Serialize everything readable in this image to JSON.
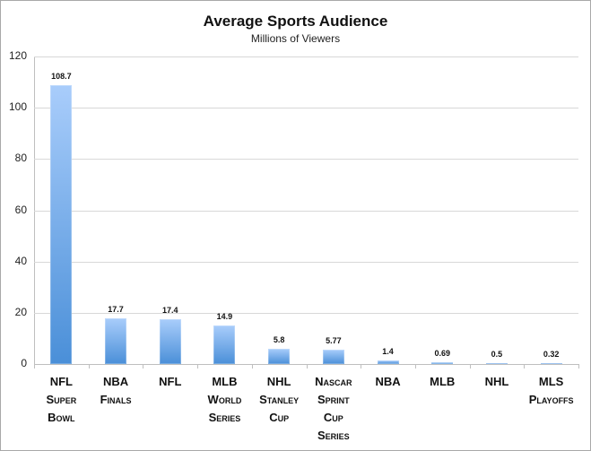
{
  "chart_data": {
    "type": "bar",
    "title": "Average Sports Audience",
    "subtitle": "Millions of Viewers",
    "xlabel": "",
    "ylabel": "",
    "ylim": [
      0,
      120
    ],
    "yticks": [
      "0",
      "20",
      "40",
      "60",
      "80",
      "100",
      "120"
    ],
    "grid": true,
    "legend": null,
    "categories": [
      "NFL Super Bowl",
      "NBA Finals",
      "NFL",
      "MLB World Series",
      "NHL Stanley Cup",
      "Nascar Sprint Cup Series",
      "NBA",
      "MLB",
      "NHL",
      "MLS Playoffs"
    ],
    "category_lines": [
      [
        "NFL",
        "Super",
        "Bowl"
      ],
      [
        "NBA",
        "Finals"
      ],
      [
        "NFL"
      ],
      [
        "MLB",
        "World",
        "Series"
      ],
      [
        "NHL",
        "Stanley",
        "Cup"
      ],
      [
        "Nascar",
        "Sprint",
        "Cup",
        "Series"
      ],
      [
        "NBA"
      ],
      [
        "MLB"
      ],
      [
        "NHL"
      ],
      [
        "MLS",
        "Playoffs"
      ]
    ],
    "values": [
      108.7,
      17.7,
      17.4,
      14.9,
      5.8,
      5.77,
      1.4,
      0.69,
      0.5,
      0.32
    ],
    "value_labels": [
      "108.7",
      "17.7",
      "17.4",
      "14.9",
      "5.8",
      "5.77",
      "1.4",
      "0.69",
      "0.5",
      "0.32"
    ],
    "colors": {
      "bar_top": "#a9cdfb",
      "bar_bottom": "#4a8fd8",
      "grid": "#d8d8d8"
    }
  }
}
